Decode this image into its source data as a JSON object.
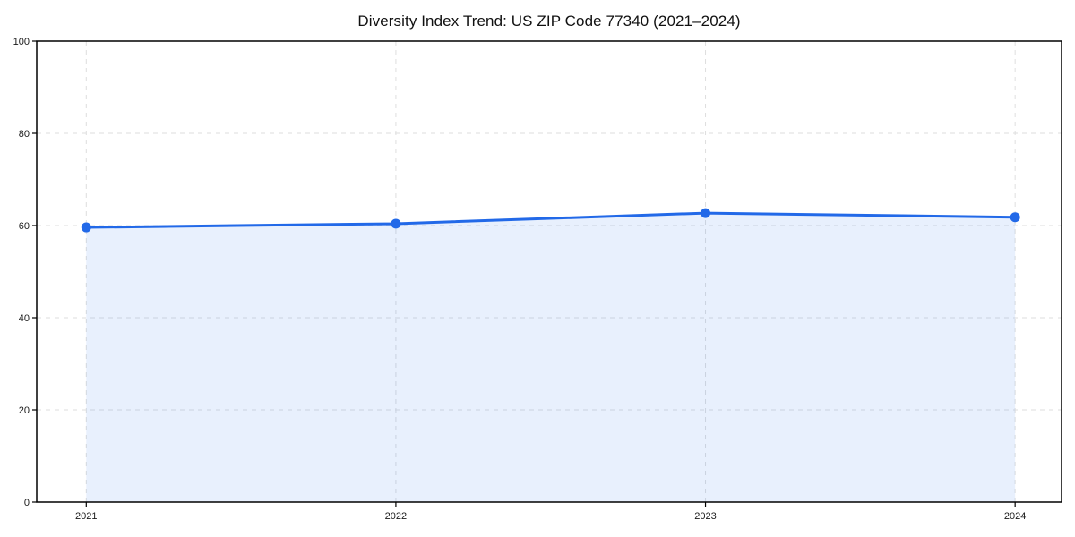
{
  "chart_data": {
    "type": "area",
    "title": "Diversity Index Trend: US ZIP Code 77340 (2021–2024)",
    "x": [
      2021,
      2022,
      2023,
      2024
    ],
    "series": [
      {
        "name": "Diversity Index",
        "values": [
          59.6,
          60.4,
          62.7,
          61.8
        ]
      }
    ],
    "xlabel": "",
    "ylabel": "",
    "xticks": [
      "2021",
      "2022",
      "2023",
      "2024"
    ],
    "yticks": [
      0,
      20,
      40,
      60,
      80,
      100
    ],
    "xlim": [
      2020.84,
      2024.15
    ],
    "ylim": [
      0,
      100
    ],
    "grid": true,
    "grid_style": "dashed",
    "legend": false,
    "marker": "circle",
    "colors": {
      "line": "#2269E8",
      "marker": "#2269E8",
      "fill": "rgba(34,105,232,0.10)",
      "grid": "#dedede",
      "spine": "#000000",
      "tick_text": "#1a1a1a",
      "background": "#ffffff"
    }
  }
}
